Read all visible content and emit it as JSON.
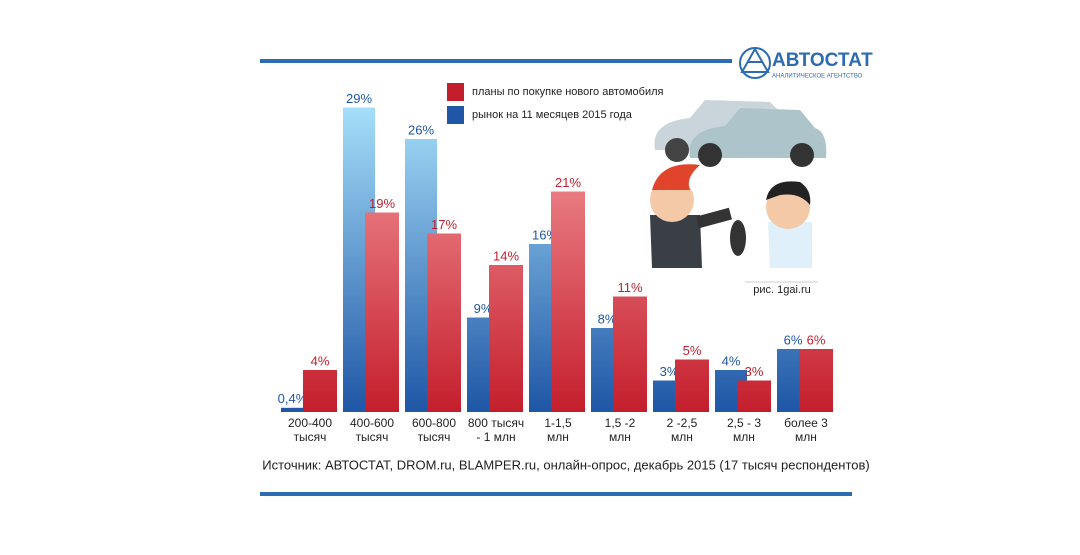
{
  "chart_data": {
    "type": "bar",
    "logo": "АВТОСТАТ",
    "logo_subtitle": "АНАЛИТИЧЕСКОЕ АГЕНТСТВО",
    "categories": [
      [
        "200-400",
        "тысяч"
      ],
      [
        "400-600",
        "тысяч"
      ],
      [
        "600-800",
        "тысяч"
      ],
      [
        "800 тысяч",
        "- 1 млн"
      ],
      [
        "1-1,5",
        "млн"
      ],
      [
        "1,5 -2",
        "млн"
      ],
      [
        "2 -2,5",
        "млн"
      ],
      [
        "2,5 - 3",
        "млн"
      ],
      [
        "более 3",
        "млн"
      ]
    ],
    "series": [
      {
        "name": "рынок на 11 месяцев 2015 года",
        "color": "#1f56a6",
        "values": [
          0.4,
          29,
          26,
          9,
          16,
          8,
          3,
          4,
          6
        ],
        "value_labels": [
          "0,4%",
          "29%",
          "26%",
          "9%",
          "16%",
          "8%",
          "3%",
          "4%",
          "6%"
        ]
      },
      {
        "name": "планы по покупке нового автомобиля",
        "color": "#c41e2c",
        "values": [
          4,
          19,
          17,
          14,
          21,
          11,
          5,
          3,
          6
        ],
        "value_labels": [
          "4%",
          "19%",
          "17%",
          "14%",
          "21%",
          "11%",
          "5%",
          "3%",
          "6%"
        ]
      }
    ],
    "legend_order": [
      1,
      0
    ],
    "image_credit": "рис. 1gai.ru",
    "source": "Источник: АВТОСТАТ, DROM.ru, BLAMPER.ru, онлайн-опрос, декабрь 2015 (17 тысяч респондентов)"
  }
}
